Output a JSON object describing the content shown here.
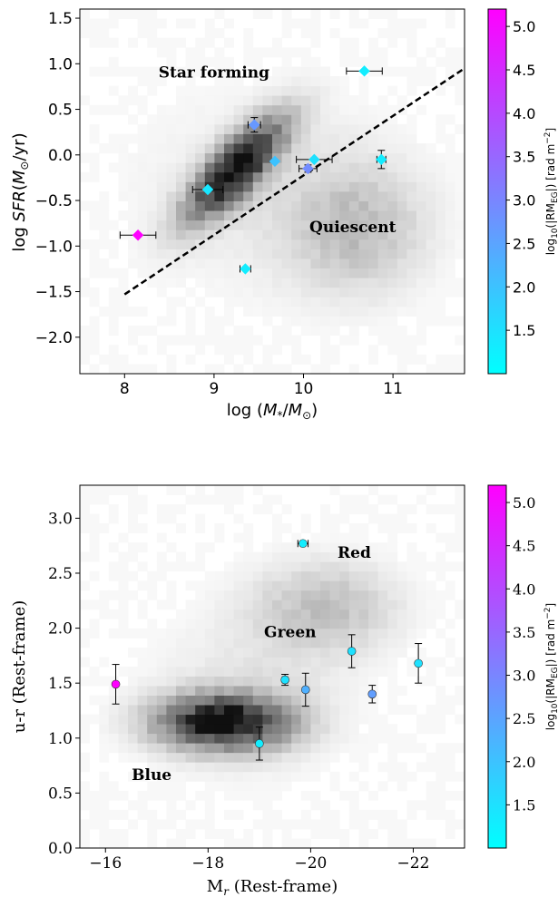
{
  "colorbar_colors": {
    "low": "#00ffff",
    "high": "#ff00ff"
  },
  "chart_data": [
    {
      "type": "scatter",
      "xlabel": "log (M*/M⊙)",
      "ylabel": "log SFR(M⊙/yr)",
      "xlim": [
        7.5,
        11.8
      ],
      "ylim": [
        -2.4,
        1.6
      ],
      "xticks": [
        "8",
        "9",
        "10",
        "11"
      ],
      "xtick_values": [
        8,
        9,
        10,
        11
      ],
      "yticks": [
        "−2.0",
        "−1.5",
        "−1.0",
        "−0.5",
        "0.0",
        "0.5",
        "1.0",
        "1.5"
      ],
      "ytick_values": [
        -2.0,
        -1.5,
        -1.0,
        -0.5,
        0.0,
        0.5,
        1.0,
        1.5
      ],
      "annotations": [
        {
          "text": "Star forming",
          "x": 9.0,
          "y": 0.85
        },
        {
          "text": "Quiescent",
          "x": 10.55,
          "y": -0.85
        }
      ],
      "divider_line": {
        "x": [
          8.0,
          11.8
        ],
        "y": [
          -1.53,
          0.95
        ],
        "style": "dashed"
      },
      "background": "2D density histogram (grey)",
      "points": [
        {
          "x": 8.15,
          "y": -0.88,
          "xerr": 0.2,
          "yerr": 0,
          "c": 5.2
        },
        {
          "x": 8.93,
          "y": -0.38,
          "xerr": 0.17,
          "yerr": 0,
          "c": 1.4
        },
        {
          "x": 9.35,
          "y": -1.25,
          "xerr": 0.06,
          "yerr": 0,
          "c": 1.3
        },
        {
          "x": 9.45,
          "y": 0.33,
          "xerr": 0.07,
          "yerr": 0.08,
          "c": 2.7
        },
        {
          "x": 9.68,
          "y": -0.07,
          "xerr": 0,
          "yerr": 0,
          "c": 2.0
        },
        {
          "x": 10.05,
          "y": -0.15,
          "xerr": 0.1,
          "yerr": 0.04,
          "c": 2.9
        },
        {
          "x": 10.12,
          "y": -0.05,
          "xerr": 0.2,
          "yerr": 0,
          "c": 1.5
        },
        {
          "x": 10.68,
          "y": 0.92,
          "xerr": 0.2,
          "yerr": 0,
          "c": 1.3
        },
        {
          "x": 10.87,
          "y": -0.05,
          "xerr": 0.05,
          "yerr": 0.1,
          "c": 1.3
        }
      ],
      "colorbar": {
        "label": "log10(|RMEG|) [rad m⁻²]",
        "range": [
          1.0,
          5.2
        ],
        "ticks": [
          "1.5",
          "2.0",
          "2.5",
          "3.0",
          "3.5",
          "4.0",
          "4.5",
          "5.0"
        ],
        "tick_values": [
          1.5,
          2.0,
          2.5,
          3.0,
          3.5,
          4.0,
          4.5,
          5.0
        ]
      }
    },
    {
      "type": "scatter",
      "xlabel": "Mr (Rest-frame)",
      "ylabel": "u-r (Rest-frame)",
      "xlim": [
        -15.5,
        -23.0
      ],
      "ylim": [
        0.0,
        3.3
      ],
      "xticks": [
        "−16",
        "−18",
        "−20",
        "−22"
      ],
      "xtick_values": [
        -16,
        -18,
        -20,
        -22
      ],
      "yticks": [
        "0.0",
        "0.5",
        "1.0",
        "1.5",
        "2.0",
        "2.5",
        "3.0"
      ],
      "ytick_values": [
        0.0,
        0.5,
        1.0,
        1.5,
        2.0,
        2.5,
        3.0
      ],
      "annotations": [
        {
          "text": "Red",
          "x": -20.85,
          "y": 2.64
        },
        {
          "text": "Green",
          "x": -19.6,
          "y": 1.92
        },
        {
          "text": "Blue",
          "x": -16.9,
          "y": 0.62
        }
      ],
      "background": "2D density histogram (grey)",
      "points": [
        {
          "x": -16.2,
          "y": 1.49,
          "xerr": 0,
          "yerr": 0.18,
          "c": 5.2
        },
        {
          "x": -19.0,
          "y": 0.95,
          "xerr": 0,
          "yerr": 0.15,
          "c": 1.3
        },
        {
          "x": -19.5,
          "y": 1.53,
          "xerr": 0.05,
          "yerr": 0.05,
          "c": 1.5
        },
        {
          "x": -19.85,
          "y": 2.77,
          "xerr": 0.1,
          "yerr": 0,
          "c": 1.3
        },
        {
          "x": -19.9,
          "y": 1.44,
          "xerr": 0,
          "yerr": 0.15,
          "c": 2.3
        },
        {
          "x": -20.8,
          "y": 1.79,
          "xerr": 0,
          "yerr": 0.15,
          "c": 1.5
        },
        {
          "x": -21.2,
          "y": 1.4,
          "xerr": 0,
          "yerr": 0.08,
          "c": 2.6
        },
        {
          "x": -22.1,
          "y": 1.68,
          "xerr": 0,
          "yerr": 0.18,
          "c": 1.5
        }
      ],
      "colorbar": {
        "label": "log10(|RMEG|) [rad m⁻²]",
        "range": [
          1.0,
          5.2
        ],
        "ticks": [
          "1.5",
          "2.0",
          "2.5",
          "3.0",
          "3.5",
          "4.0",
          "4.5",
          "5.0"
        ],
        "tick_values": [
          1.5,
          2.0,
          2.5,
          3.0,
          3.5,
          4.0,
          4.5,
          5.0
        ]
      }
    }
  ]
}
